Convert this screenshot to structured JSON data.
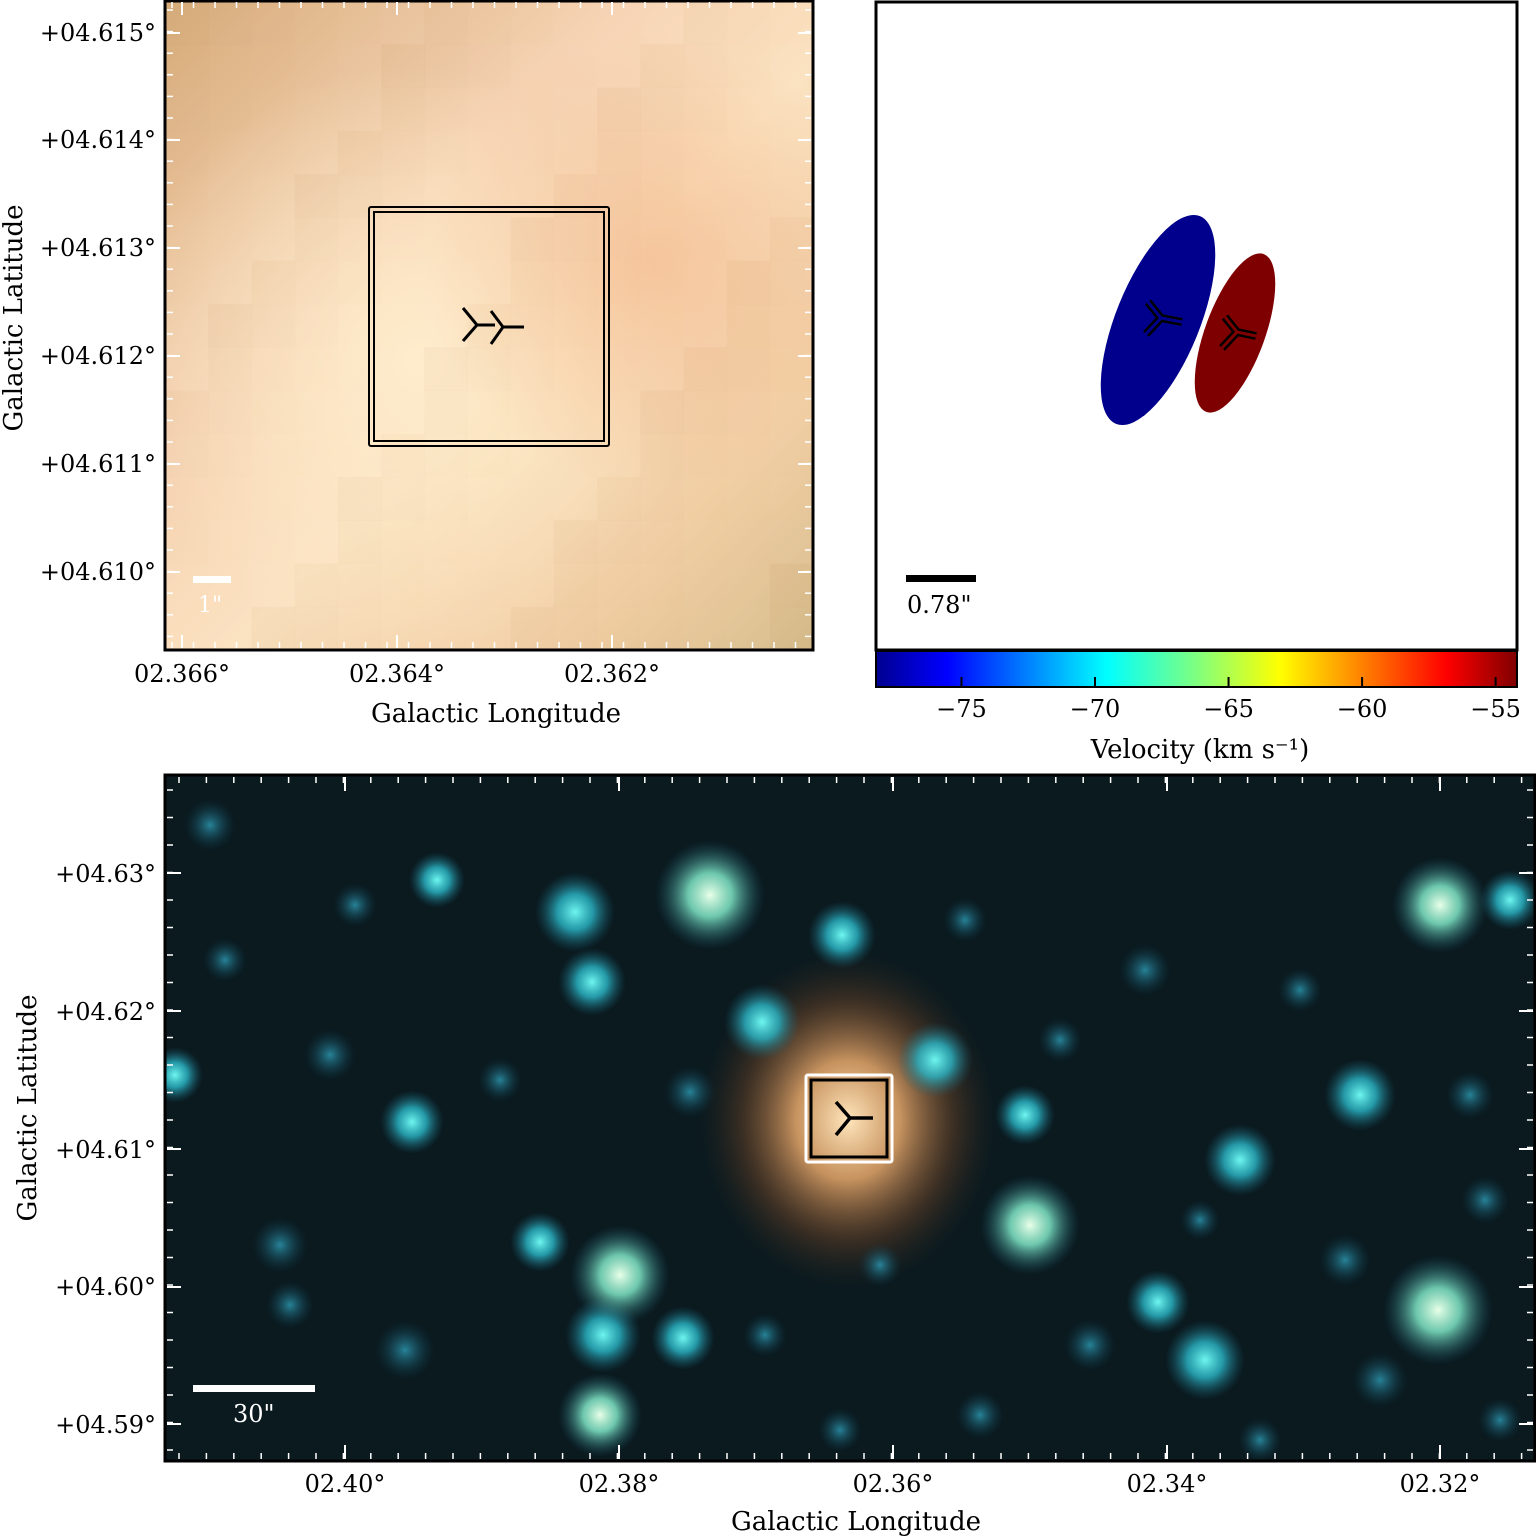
{
  "top_left": {
    "ylabel": "Galactic Latitude",
    "xlabel": "Galactic Longitude",
    "yticks": [
      "+04.615°",
      "+04.614°",
      "+04.613°",
      "+04.612°",
      "+04.611°",
      "+04.610°"
    ],
    "xticks": [
      "02.366°",
      "02.364°",
      "02.362°"
    ],
    "scalebar": "1\""
  },
  "top_right": {
    "scalebar": "0.78\"",
    "colorbar": {
      "label": "Velocity (km s⁻¹)",
      "ticks": [
        "−75",
        "−70",
        "−65",
        "−60",
        "−55"
      ],
      "range": [
        -78.2,
        -54.2
      ]
    },
    "spots": [
      {
        "name": "blueshifted",
        "color": "#00008c"
      },
      {
        "name": "redshifted",
        "color": "#7f0000"
      }
    ]
  },
  "bottom": {
    "ylabel": "Galactic Latitude",
    "xlabel": "Galactic Longitude",
    "yticks": [
      "+04.63°",
      "+04.62°",
      "+04.61°",
      "+04.60°",
      "+04.59°"
    ],
    "xticks": [
      "02.40°",
      "02.38°",
      "02.36°",
      "02.34°",
      "02.32°"
    ],
    "scalebar": "30\""
  }
}
